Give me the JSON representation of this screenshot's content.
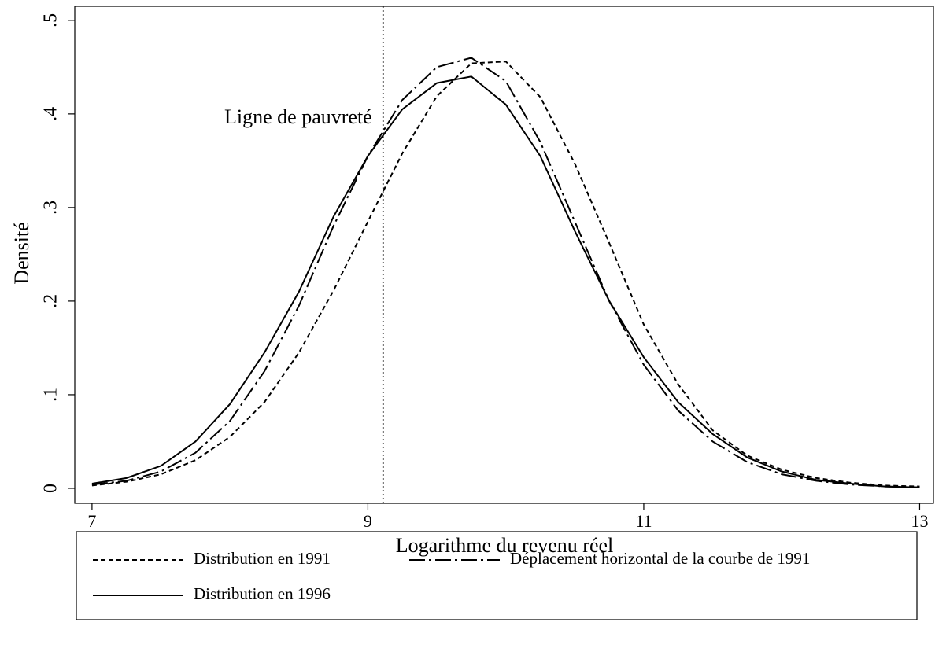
{
  "chart_data": {
    "type": "line",
    "x_label": "Logarithme du revenu réel",
    "y_label": "Densité",
    "x": [
      7,
      7.25,
      7.5,
      7.75,
      8,
      8.25,
      8.5,
      8.75,
      9,
      9.25,
      9.5,
      9.75,
      10,
      10.25,
      10.5,
      10.75,
      11,
      11.25,
      11.5,
      11.75,
      12,
      12.25,
      12.5,
      12.75,
      13
    ],
    "series": [
      {
        "name": "Distribution en 1991",
        "color": "#000000",
        "dash": "dashed",
        "values": [
          0.003,
          0.007,
          0.015,
          0.03,
          0.055,
          0.092,
          0.145,
          0.211,
          0.285,
          0.358,
          0.419,
          0.454,
          0.456,
          0.418,
          0.347,
          0.262,
          0.175,
          0.111,
          0.062,
          0.035,
          0.02,
          0.011,
          0.006,
          0.003,
          0.002
        ]
      },
      {
        "name": "Déplacement horizontal de la courbe de 1991",
        "color": "#000000",
        "dash": "dashdot",
        "values": [
          0.004,
          0.008,
          0.018,
          0.038,
          0.072,
          0.125,
          0.195,
          0.28,
          0.355,
          0.415,
          0.45,
          0.46,
          0.435,
          0.37,
          0.285,
          0.2,
          0.132,
          0.083,
          0.05,
          0.028,
          0.015,
          0.008,
          0.004,
          0.002,
          0.001
        ]
      },
      {
        "name": "Distribution en 1996",
        "color": "#000000",
        "dash": "solid",
        "values": [
          0.005,
          0.011,
          0.024,
          0.05,
          0.09,
          0.145,
          0.21,
          0.29,
          0.355,
          0.405,
          0.433,
          0.44,
          0.41,
          0.355,
          0.275,
          0.2,
          0.14,
          0.092,
          0.058,
          0.033,
          0.018,
          0.009,
          0.005,
          0.002,
          0.001
        ]
      }
    ],
    "xlim": [
      6.875,
      13.1
    ],
    "xticks": [
      7,
      9,
      11,
      13
    ],
    "ylim": [
      -0.016,
      0.515
    ],
    "yticks": [
      0,
      {
        "value": 0.1,
        "label": ".1"
      },
      {
        "value": 0.2,
        "label": ".2"
      },
      {
        "value": 0.3,
        "label": ".3"
      },
      {
        "value": 0.4,
        "label": ".4"
      },
      {
        "value": 0.5,
        "label": ".5"
      }
    ],
    "poverty_line": {
      "value": 9.11,
      "label": "Ligne de pauvreté"
    },
    "grid": false,
    "legend": "bottom"
  }
}
